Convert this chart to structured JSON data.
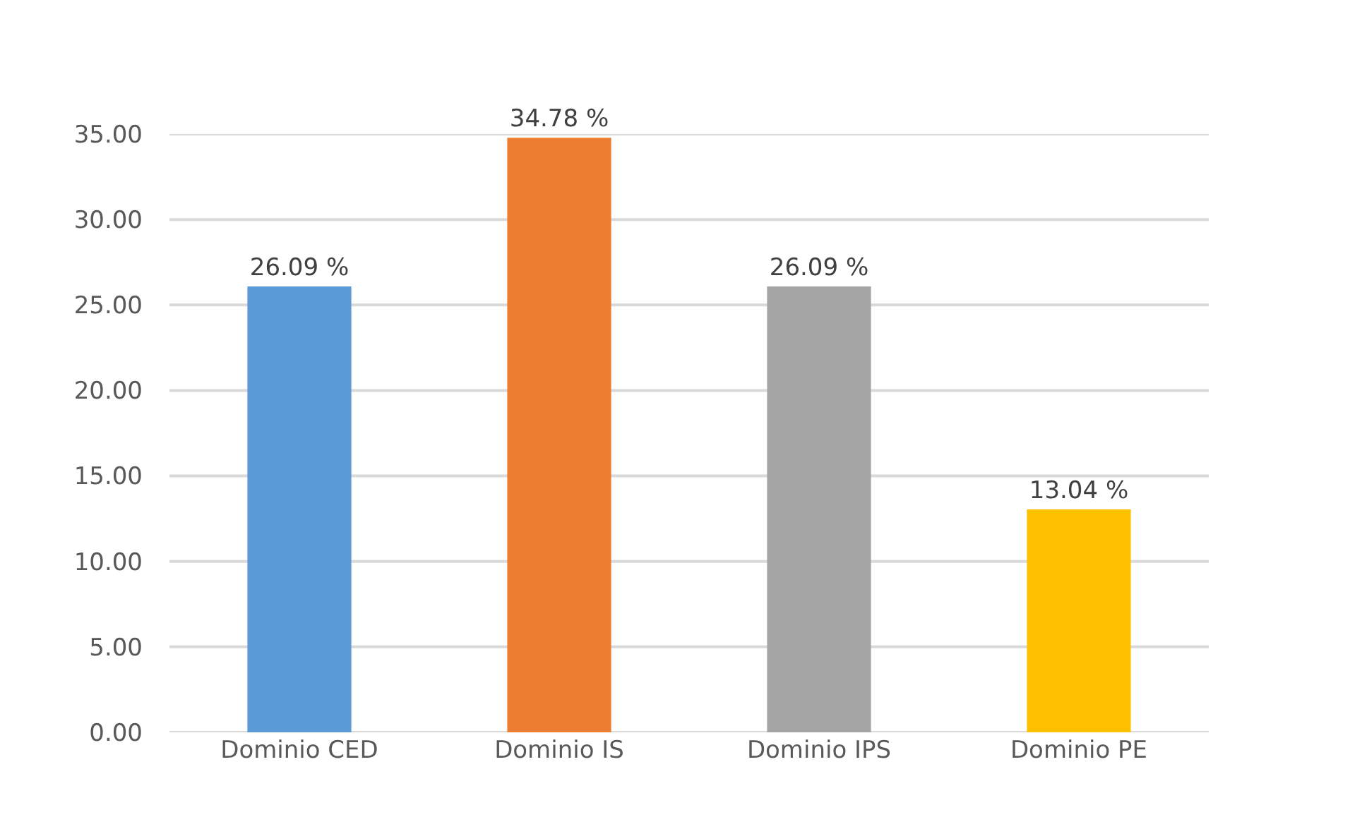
{
  "chart_data": {
    "type": "bar",
    "categories": [
      "Dominio CED",
      "Dominio IS",
      "Dominio IPS",
      "Dominio PE"
    ],
    "values": [
      26.09,
      34.78,
      26.09,
      13.04
    ],
    "value_labels": [
      "26.09 %",
      "34.78 %",
      "26.09 %",
      "13.04 %"
    ],
    "colors": [
      "#5b9bd5",
      "#ed7d31",
      "#a5a5a5",
      "#ffc000"
    ],
    "ylim": [
      0,
      35
    ],
    "yticks": [
      {
        "value": 0,
        "label": "0.00"
      },
      {
        "value": 5,
        "label": "5.00"
      },
      {
        "value": 10,
        "label": "10.00"
      },
      {
        "value": 15,
        "label": "15.00"
      },
      {
        "value": 20,
        "label": "20.00"
      },
      {
        "value": 25,
        "label": "25.00"
      },
      {
        "value": 30,
        "label": "30.00"
      },
      {
        "value": 35,
        "label": "35.00"
      }
    ],
    "grid": "y"
  }
}
